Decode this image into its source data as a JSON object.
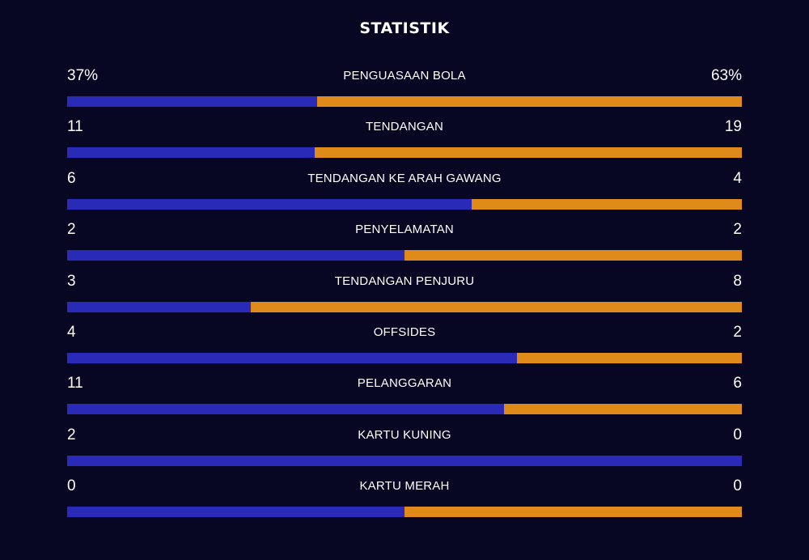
{
  "title": "STATISTIK",
  "colors": {
    "background": "#070723",
    "home": "#2a2ab8",
    "away": "#e08a1a"
  },
  "stats": [
    {
      "label": "PENGUASAAN BOLA",
      "left": "37%",
      "right": "63%",
      "left_share": 0.37
    },
    {
      "label": "TENDANGAN",
      "left": "11",
      "right": "19",
      "left_share": 0.3667
    },
    {
      "label": "TENDANGAN KE ARAH GAWANG",
      "left": "6",
      "right": "4",
      "left_share": 0.6
    },
    {
      "label": "PENYELAMATAN",
      "left": "2",
      "right": "2",
      "left_share": 0.5
    },
    {
      "label": "TENDANGAN PENJURU",
      "left": "3",
      "right": "8",
      "left_share": 0.2727
    },
    {
      "label": "OFFSIDES",
      "left": "4",
      "right": "2",
      "left_share": 0.6667
    },
    {
      "label": "PELANGGARAN",
      "left": "11",
      "right": "6",
      "left_share": 0.6471
    },
    {
      "label": "KARTU KUNING",
      "left": "2",
      "right": "0",
      "left_share": 1.0
    },
    {
      "label": "KARTU MERAH",
      "left": "0",
      "right": "0",
      "left_share": 0.5
    }
  ]
}
